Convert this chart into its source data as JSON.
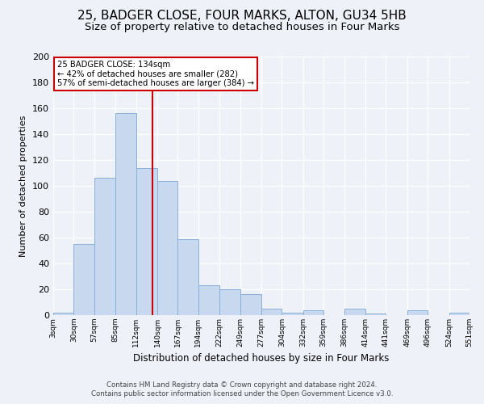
{
  "title1": "25, BADGER CLOSE, FOUR MARKS, ALTON, GU34 5HB",
  "title2": "Size of property relative to detached houses in Four Marks",
  "xlabel": "Distribution of detached houses by size in Four Marks",
  "ylabel": "Number of detached properties",
  "bin_labels": [
    "3sqm",
    "30sqm",
    "57sqm",
    "85sqm",
    "112sqm",
    "140sqm",
    "167sqm",
    "194sqm",
    "222sqm",
    "249sqm",
    "277sqm",
    "304sqm",
    "332sqm",
    "359sqm",
    "386sqm",
    "414sqm",
    "441sqm",
    "469sqm",
    "496sqm",
    "524sqm",
    "551sqm"
  ],
  "bin_edges": [
    3,
    30,
    57,
    85,
    112,
    140,
    167,
    194,
    222,
    249,
    277,
    304,
    332,
    359,
    386,
    414,
    441,
    469,
    496,
    524,
    551
  ],
  "bar_heights": [
    2,
    55,
    106,
    156,
    114,
    104,
    59,
    23,
    20,
    16,
    5,
    2,
    4,
    0,
    5,
    1,
    0,
    4,
    0,
    2
  ],
  "bar_color": "#c8d8ee",
  "bar_edge_color": "#8ab0d8",
  "vline_x": 134,
  "vline_color": "#cc0000",
  "annotation_line1": "25 BADGER CLOSE: 134sqm",
  "annotation_line2": "← 42% of detached houses are smaller (282)",
  "annotation_line3": "57% of semi-detached houses are larger (384) →",
  "annotation_box_color": "#cc0000",
  "ylim": [
    0,
    200
  ],
  "yticks": [
    0,
    20,
    40,
    60,
    80,
    100,
    120,
    140,
    160,
    180,
    200
  ],
  "footer1": "Contains HM Land Registry data © Crown copyright and database right 2024.",
  "footer2": "Contains public sector information licensed under the Open Government Licence v3.0.",
  "bg_color": "#eef2f8",
  "plot_bg_color": "#eef2f8",
  "title1_fontsize": 11,
  "title2_fontsize": 9.5
}
